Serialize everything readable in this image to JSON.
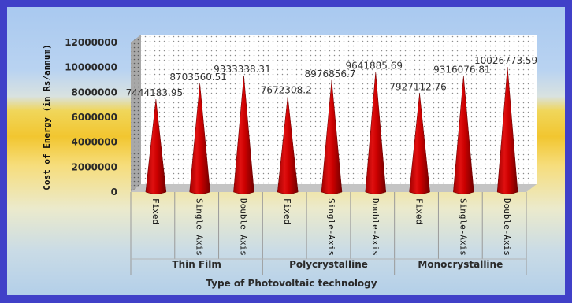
{
  "chart_data": {
    "type": "bar",
    "bar_shape": "cone",
    "bar_color": "#d40000",
    "ylabel": "Cost of Energy (in Rs/annum)",
    "xlabel": "Type of Photovoltaic technology",
    "ylim": [
      0,
      12000000
    ],
    "yticks": [
      "0",
      "2000000",
      "4000000",
      "6000000",
      "8000000",
      "10000000",
      "12000000"
    ],
    "grid": "dotted",
    "groups": [
      {
        "name": "Thin Film",
        "categories": [
          "Fixed",
          "Single-Axis",
          "Double-Axis"
        ],
        "values": [
          7444183.95,
          8703560.51,
          9333338.31
        ],
        "labels": [
          "7444183.95",
          "8703560.51",
          "9333338.31"
        ]
      },
      {
        "name": "Polycrystalline",
        "categories": [
          "Fixed",
          "Single-Axis",
          "Double-Axis"
        ],
        "values": [
          7672308.2,
          8976856.7,
          9641885.69
        ],
        "labels": [
          "7672308.2",
          "8976856.7",
          "9641885.69"
        ]
      },
      {
        "name": "Monocrystalline",
        "categories": [
          "Fixed",
          "Single-Axis",
          "Double-Axis"
        ],
        "values": [
          7927112.76,
          9316076.81,
          10026773.59
        ],
        "labels": [
          "7927112.76",
          "9316076.81",
          "10026773.59"
        ]
      }
    ]
  }
}
